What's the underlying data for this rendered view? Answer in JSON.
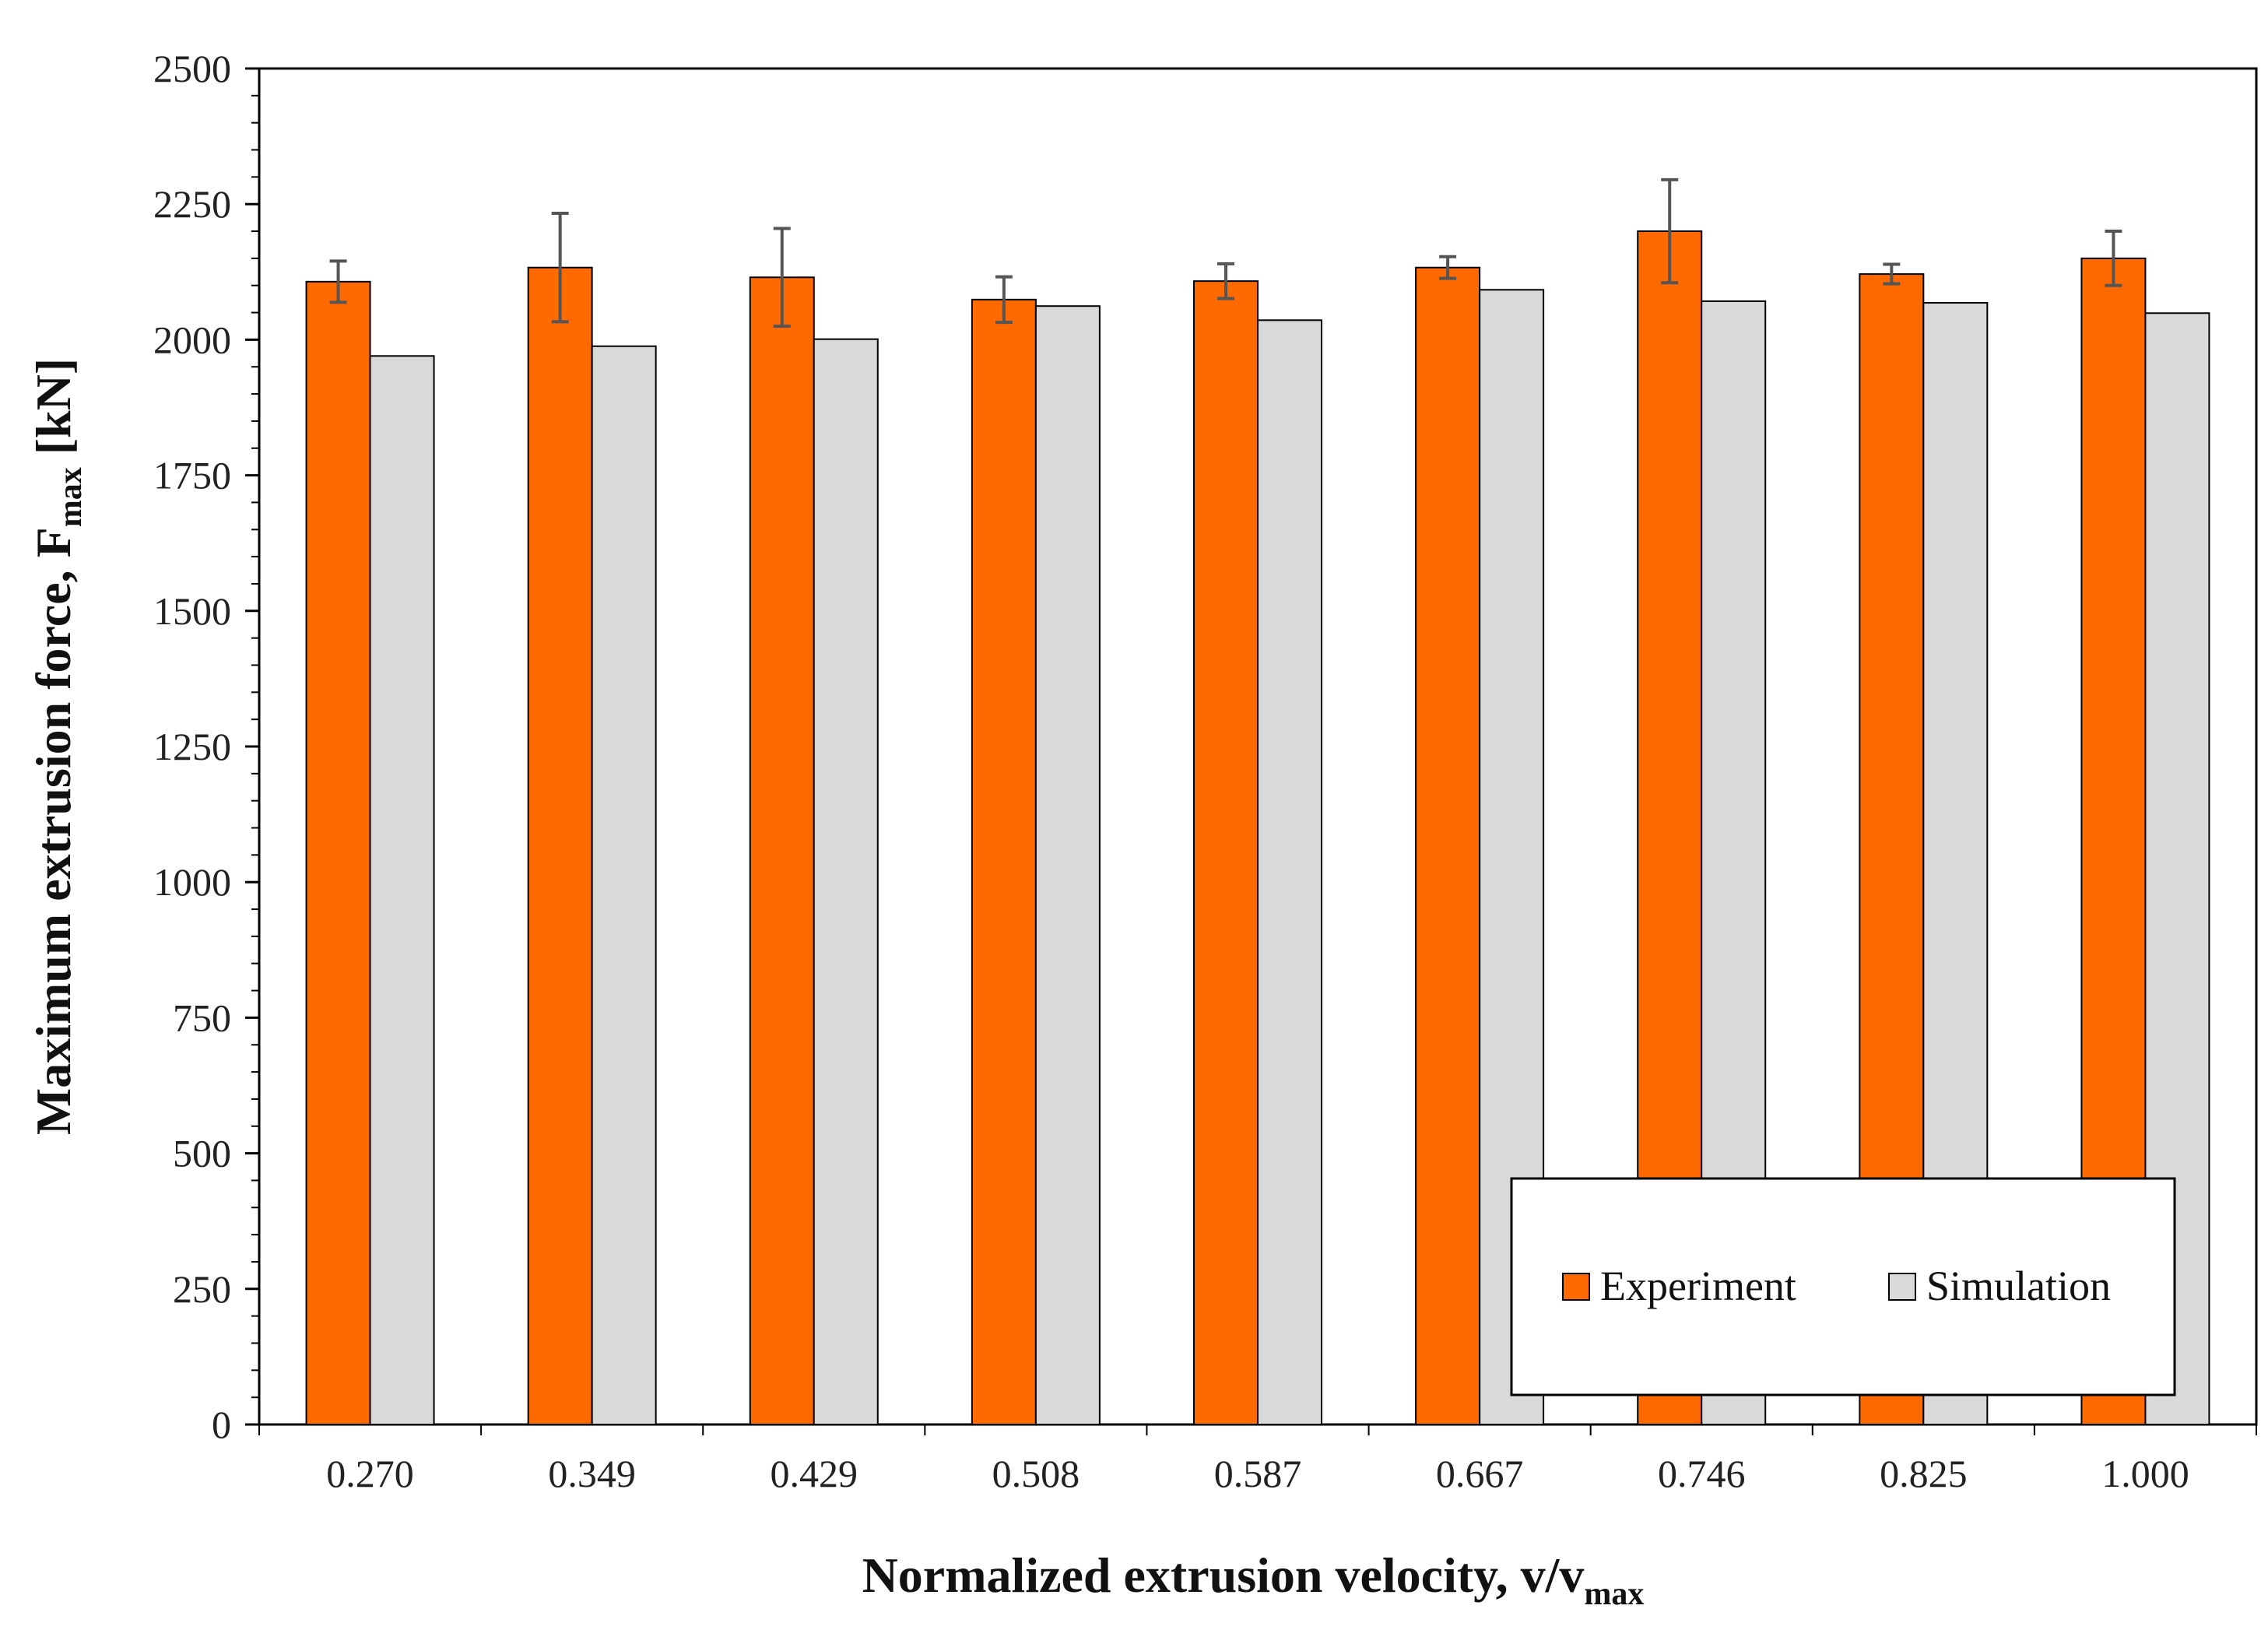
{
  "chart_data": {
    "type": "bar",
    "categories": [
      "0.270",
      "0.349",
      "0.429",
      "0.508",
      "0.587",
      "0.667",
      "0.746",
      "0.825",
      "1.000"
    ],
    "series": [
      {
        "name": "Experiment",
        "color": "#ff6a00",
        "values": [
          2107,
          2133,
          2115,
          2074,
          2108,
          2133,
          2200,
          2121,
          2150
        ],
        "error": [
          38,
          100,
          90,
          42,
          32,
          20,
          95,
          18,
          50
        ]
      },
      {
        "name": "Simulation",
        "color": "#d9d9d9",
        "values": [
          1970,
          1988,
          2001,
          2062,
          2036,
          2092,
          2071,
          2068,
          2049
        ]
      }
    ],
    "yticks": [
      "0",
      "250",
      "500",
      "750",
      "1000",
      "1250",
      "1500",
      "1750",
      "2000",
      "2250",
      "2500"
    ],
    "ylim": [
      0,
      2500
    ],
    "ylabel": {
      "main": "Maximum extrusion force, F",
      "sub": "max",
      "unit": " [kN]"
    },
    "xlabel": {
      "main": "Normalized extrusion velocity, v/v",
      "sub": "max"
    },
    "legend": {
      "position": "bottom-right",
      "entries": [
        "Experiment",
        "Simulation"
      ]
    },
    "grid": false
  }
}
